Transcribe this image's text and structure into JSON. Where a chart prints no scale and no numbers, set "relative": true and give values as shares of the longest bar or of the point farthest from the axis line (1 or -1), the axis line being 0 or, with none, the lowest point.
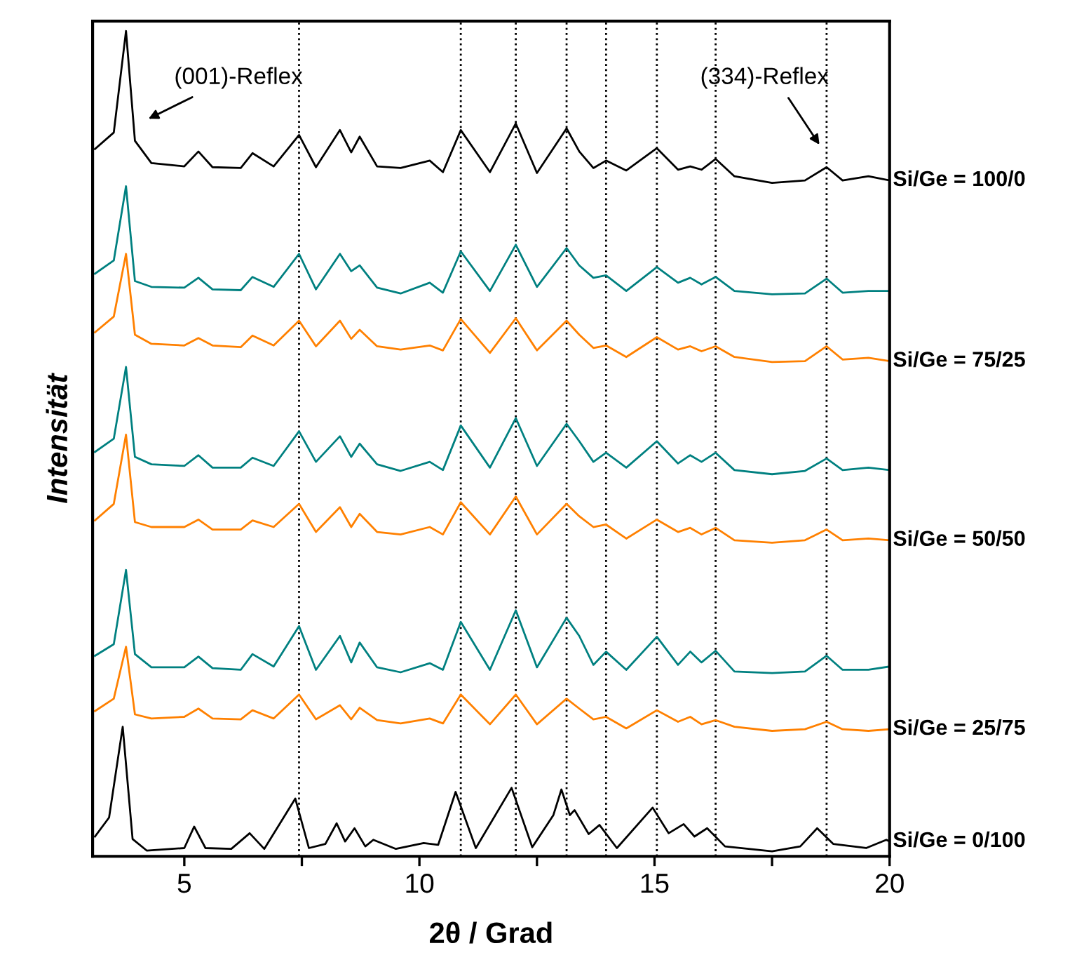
{
  "chart_data": {
    "type": "line",
    "relative": true,
    "xlabel": "2θ / Grad",
    "ylabel": "Intensität",
    "xlim": [
      3.05,
      20
    ],
    "xticks": [
      5,
      {
        "value": 7.5,
        "label": null
      },
      10,
      {
        "value": 12.5,
        "label": null
      },
      15,
      {
        "value": 17.5,
        "label": null
      },
      20
    ],
    "grid": false,
    "legend": false,
    "line_style": "solid",
    "marker": "none",
    "x": [
      3.1,
      3.5,
      3.76,
      3.95,
      4.3,
      5.0,
      5.3,
      5.6,
      6.2,
      6.45,
      6.9,
      7.44,
      7.8,
      8.31,
      8.55,
      8.73,
      9.1,
      9.6,
      10.22,
      10.5,
      10.88,
      11.5,
      12.05,
      12.5,
      13.13,
      13.4,
      13.7,
      13.97,
      14.4,
      15.05,
      15.5,
      15.76,
      16.0,
      16.3,
      16.7,
      17.5,
      18.2,
      18.66,
      19.0,
      19.55,
      20
    ],
    "series": [
      {
        "name": "Si/Ge = 100/0",
        "color": "#000000",
        "values": [
          0.857,
          0.877,
          1.0,
          0.867,
          0.84,
          0.836,
          0.854,
          0.835,
          0.834,
          0.852,
          0.836,
          0.874,
          0.835,
          0.88,
          0.853,
          0.872,
          0.836,
          0.834,
          0.843,
          0.829,
          0.88,
          0.829,
          0.888,
          0.828,
          0.882,
          0.854,
          0.834,
          0.843,
          0.831,
          0.858,
          0.832,
          0.836,
          0.832,
          0.845,
          0.824,
          0.816,
          0.819,
          0.835,
          0.819,
          0.824,
          0.819
        ]
      },
      {
        "color": "#008080",
        "values": [
          0.706,
          0.722,
          0.812,
          0.697,
          0.69,
          0.689,
          0.701,
          0.687,
          0.686,
          0.702,
          0.69,
          0.73,
          0.687,
          0.73,
          0.709,
          0.716,
          0.689,
          0.682,
          0.695,
          0.683,
          0.733,
          0.685,
          0.741,
          0.69,
          0.737,
          0.716,
          0.701,
          0.704,
          0.685,
          0.714,
          0.695,
          0.701,
          0.693,
          0.702,
          0.685,
          0.681,
          0.682,
          0.7,
          0.683,
          0.685,
          0.685
        ]
      },
      {
        "name": "Si/Ge = 75/25",
        "color": "#ff8000",
        "values": [
          0.635,
          0.654,
          0.73,
          0.632,
          0.621,
          0.619,
          0.628,
          0.619,
          0.617,
          0.631,
          0.619,
          0.649,
          0.618,
          0.649,
          0.627,
          0.638,
          0.618,
          0.614,
          0.619,
          0.613,
          0.651,
          0.61,
          0.652,
          0.613,
          0.649,
          0.632,
          0.616,
          0.619,
          0.605,
          0.629,
          0.614,
          0.618,
          0.612,
          0.618,
          0.605,
          0.599,
          0.6,
          0.618,
          0.602,
          0.604,
          0.6
        ]
      },
      {
        "color": "#008080",
        "values": [
          0.49,
          0.506,
          0.593,
          0.484,
          0.475,
          0.473,
          0.486,
          0.471,
          0.471,
          0.483,
          0.473,
          0.515,
          0.478,
          0.509,
          0.484,
          0.5,
          0.475,
          0.467,
          0.478,
          0.468,
          0.522,
          0.471,
          0.531,
          0.473,
          0.524,
          0.503,
          0.478,
          0.489,
          0.471,
          0.503,
          0.476,
          0.486,
          0.478,
          0.489,
          0.468,
          0.463,
          0.467,
          0.482,
          0.468,
          0.471,
          0.468
        ]
      },
      {
        "name": "Si/Ge = 50/50",
        "color": "#ff8000",
        "values": [
          0.407,
          0.427,
          0.511,
          0.405,
          0.399,
          0.399,
          0.408,
          0.396,
          0.396,
          0.407,
          0.399,
          0.427,
          0.393,
          0.423,
          0.399,
          0.415,
          0.393,
          0.39,
          0.399,
          0.39,
          0.429,
          0.39,
          0.436,
          0.39,
          0.427,
          0.412,
          0.399,
          0.402,
          0.385,
          0.408,
          0.393,
          0.398,
          0.39,
          0.398,
          0.383,
          0.38,
          0.383,
          0.396,
          0.383,
          0.385,
          0.383
        ]
      },
      {
        "color": "#008080",
        "values": [
          0.243,
          0.257,
          0.347,
          0.245,
          0.229,
          0.229,
          0.242,
          0.228,
          0.226,
          0.245,
          0.23,
          0.279,
          0.226,
          0.267,
          0.235,
          0.259,
          0.229,
          0.223,
          0.234,
          0.226,
          0.284,
          0.226,
          0.298,
          0.229,
          0.289,
          0.267,
          0.232,
          0.248,
          0.226,
          0.266,
          0.232,
          0.248,
          0.235,
          0.249,
          0.224,
          0.222,
          0.224,
          0.243,
          0.226,
          0.226,
          0.23
        ]
      },
      {
        "name": "Si/Ge = 25/75",
        "color": "#ff8000",
        "values": [
          0.176,
          0.191,
          0.254,
          0.172,
          0.167,
          0.169,
          0.179,
          0.167,
          0.166,
          0.177,
          0.167,
          0.196,
          0.166,
          0.183,
          0.166,
          0.18,
          0.165,
          0.161,
          0.167,
          0.161,
          0.196,
          0.16,
          0.196,
          0.16,
          0.191,
          0.179,
          0.166,
          0.169,
          0.155,
          0.177,
          0.163,
          0.169,
          0.16,
          0.165,
          0.157,
          0.152,
          0.154,
          0.163,
          0.154,
          0.152,
          0.154
        ]
      },
      {
        "name": "Si/Ge = 0/100",
        "color": "#000000",
        "x": [
          3.1,
          3.4,
          3.69,
          3.9,
          4.2,
          5.0,
          5.21,
          5.45,
          6.0,
          6.39,
          6.7,
          7.36,
          7.65,
          8.0,
          8.24,
          8.42,
          8.62,
          8.85,
          9.02,
          9.5,
          10.09,
          10.4,
          10.77,
          11.2,
          11.96,
          12.4,
          12.85,
          13.02,
          13.2,
          13.3,
          13.6,
          13.83,
          14.2,
          14.96,
          15.3,
          15.62,
          15.85,
          16.12,
          16.5,
          17.5,
          18.1,
          18.46,
          18.8,
          19.5,
          19.93,
          20
        ],
        "values": [
          0.024,
          0.047,
          0.157,
          0.021,
          0.007,
          0.01,
          0.036,
          0.01,
          0.009,
          0.028,
          0.009,
          0.07,
          0.01,
          0.015,
          0.04,
          0.018,
          0.034,
          0.012,
          0.02,
          0.009,
          0.016,
          0.014,
          0.078,
          0.01,
          0.083,
          0.011,
          0.05,
          0.081,
          0.05,
          0.056,
          0.027,
          0.038,
          0.01,
          0.059,
          0.028,
          0.039,
          0.024,
          0.034,
          0.012,
          0.006,
          0.012,
          0.034,
          0.015,
          0.01,
          0.02,
          0.018
        ]
      }
    ],
    "ref_lines": [
      {
        "axis": "x",
        "value": 7.44,
        "color": "#000000",
        "line_style": "dotted"
      },
      {
        "axis": "x",
        "value": 10.88,
        "color": "#000000",
        "line_style": "dotted"
      },
      {
        "axis": "x",
        "value": 12.05,
        "color": "#000000",
        "line_style": "dotted"
      },
      {
        "axis": "x",
        "value": 13.13,
        "color": "#000000",
        "line_style": "dotted"
      },
      {
        "axis": "x",
        "value": 13.97,
        "color": "#000000",
        "line_style": "dotted"
      },
      {
        "axis": "x",
        "value": 15.05,
        "color": "#000000",
        "line_style": "dotted"
      },
      {
        "axis": "x",
        "value": 16.3,
        "color": "#000000",
        "line_style": "dotted"
      },
      {
        "axis": "x",
        "value": 18.66,
        "color": "#000000",
        "line_style": "dotted"
      }
    ],
    "annotations": [
      "(001)-Reflex",
      "(334)-Reflex"
    ]
  }
}
